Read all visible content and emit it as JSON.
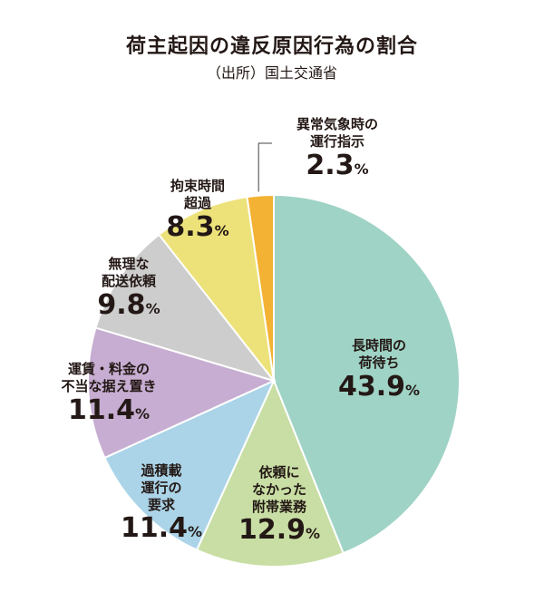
{
  "title": "荷主起因の違反原因行為の割合",
  "source": "（出所）国土交通省",
  "chart_data": {
    "type": "pie",
    "start_angle": 0,
    "direction": "clockwise",
    "unit": "%",
    "slices": [
      {
        "label_lines": [
          "長時間の",
          "荷待ち"
        ],
        "value": 43.9,
        "value_text": "43.9",
        "color": "#9fd3c5"
      },
      {
        "label_lines": [
          "依頼に",
          "なかった",
          "附帯業務"
        ],
        "value": 12.9,
        "value_text": "12.9",
        "color": "#c8dea4"
      },
      {
        "label_lines": [
          "過積載",
          "運行の",
          "要求"
        ],
        "value": 11.4,
        "value_text": "11.4",
        "color": "#abd4e8"
      },
      {
        "label_lines": [
          "運賃・料金の",
          "不当な据え置き"
        ],
        "value": 11.4,
        "value_text": "11.4",
        "color": "#c6add1"
      },
      {
        "label_lines": [
          "無理な",
          "配送依頼"
        ],
        "value": 9.8,
        "value_text": "9.8",
        "color": "#cdcdcd"
      },
      {
        "label_lines": [
          "拘束時間",
          "超過"
        ],
        "value": 8.3,
        "value_text": "8.3",
        "color": "#ede27a"
      },
      {
        "label_lines": [
          "異常気象時の",
          "運行指示"
        ],
        "value": 2.3,
        "value_text": "2.3",
        "color": "#f3b233"
      }
    ]
  }
}
